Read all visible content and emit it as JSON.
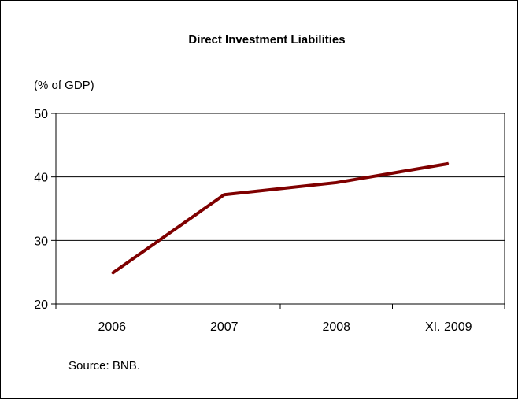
{
  "chart_data": {
    "type": "line",
    "title": "Direct Investment Liabilities",
    "ylabel": "(% of GDP)",
    "xlabel": "",
    "categories": [
      "2006",
      "2007",
      "2008",
      "XI. 2009"
    ],
    "series": [
      {
        "values": [
          24.8,
          37.2,
          39.1,
          42.1
        ],
        "color": "#7f0000"
      }
    ],
    "ylim": [
      20,
      50
    ],
    "yticks": [
      "20",
      "30",
      "40",
      "50"
    ],
    "grid": true,
    "source": "Source: BNB."
  }
}
